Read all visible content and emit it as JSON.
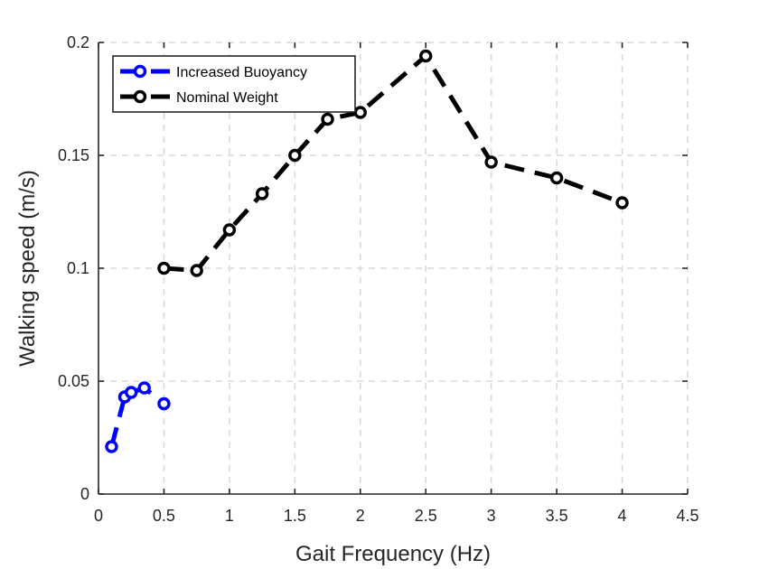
{
  "chart_data": {
    "type": "line",
    "title": "",
    "xlabel": "Gait Frequency (Hz)",
    "ylabel": "Walking speed (m/s)",
    "xlim": [
      0,
      4.5
    ],
    "ylim": [
      0,
      0.2
    ],
    "xticks": [
      0,
      0.5,
      1,
      1.5,
      2,
      2.5,
      3,
      3.5,
      4,
      4.5
    ],
    "xtick_labels": [
      "0",
      "0.5",
      "1",
      "1.5",
      "2",
      "2.5",
      "3",
      "3.5",
      "4",
      "4.5"
    ],
    "yticks": [
      0,
      0.05,
      0.1,
      0.15,
      0.2
    ],
    "ytick_labels": [
      "0",
      "0.05",
      "0.1",
      "0.15",
      "0.2"
    ],
    "grid": true,
    "legend_position": "top-left",
    "series": [
      {
        "name": "Increased Buoyancy",
        "color": "#0000ff",
        "line_style": "dashed",
        "marker": "circle",
        "x": [
          0.1,
          0.2,
          0.25,
          0.35,
          0.5
        ],
        "y": [
          0.021,
          0.043,
          0.045,
          0.047,
          0.04
        ]
      },
      {
        "name": "Nominal Weight",
        "color": "#000000",
        "line_style": "dashed",
        "marker": "circle",
        "x": [
          0.5,
          0.75,
          1,
          1.25,
          1.5,
          1.75,
          2,
          2.5,
          3,
          3.5,
          4
        ],
        "y": [
          0.1,
          0.099,
          0.117,
          0.133,
          0.15,
          0.166,
          0.169,
          0.194,
          0.147,
          0.14,
          0.129
        ]
      }
    ]
  }
}
